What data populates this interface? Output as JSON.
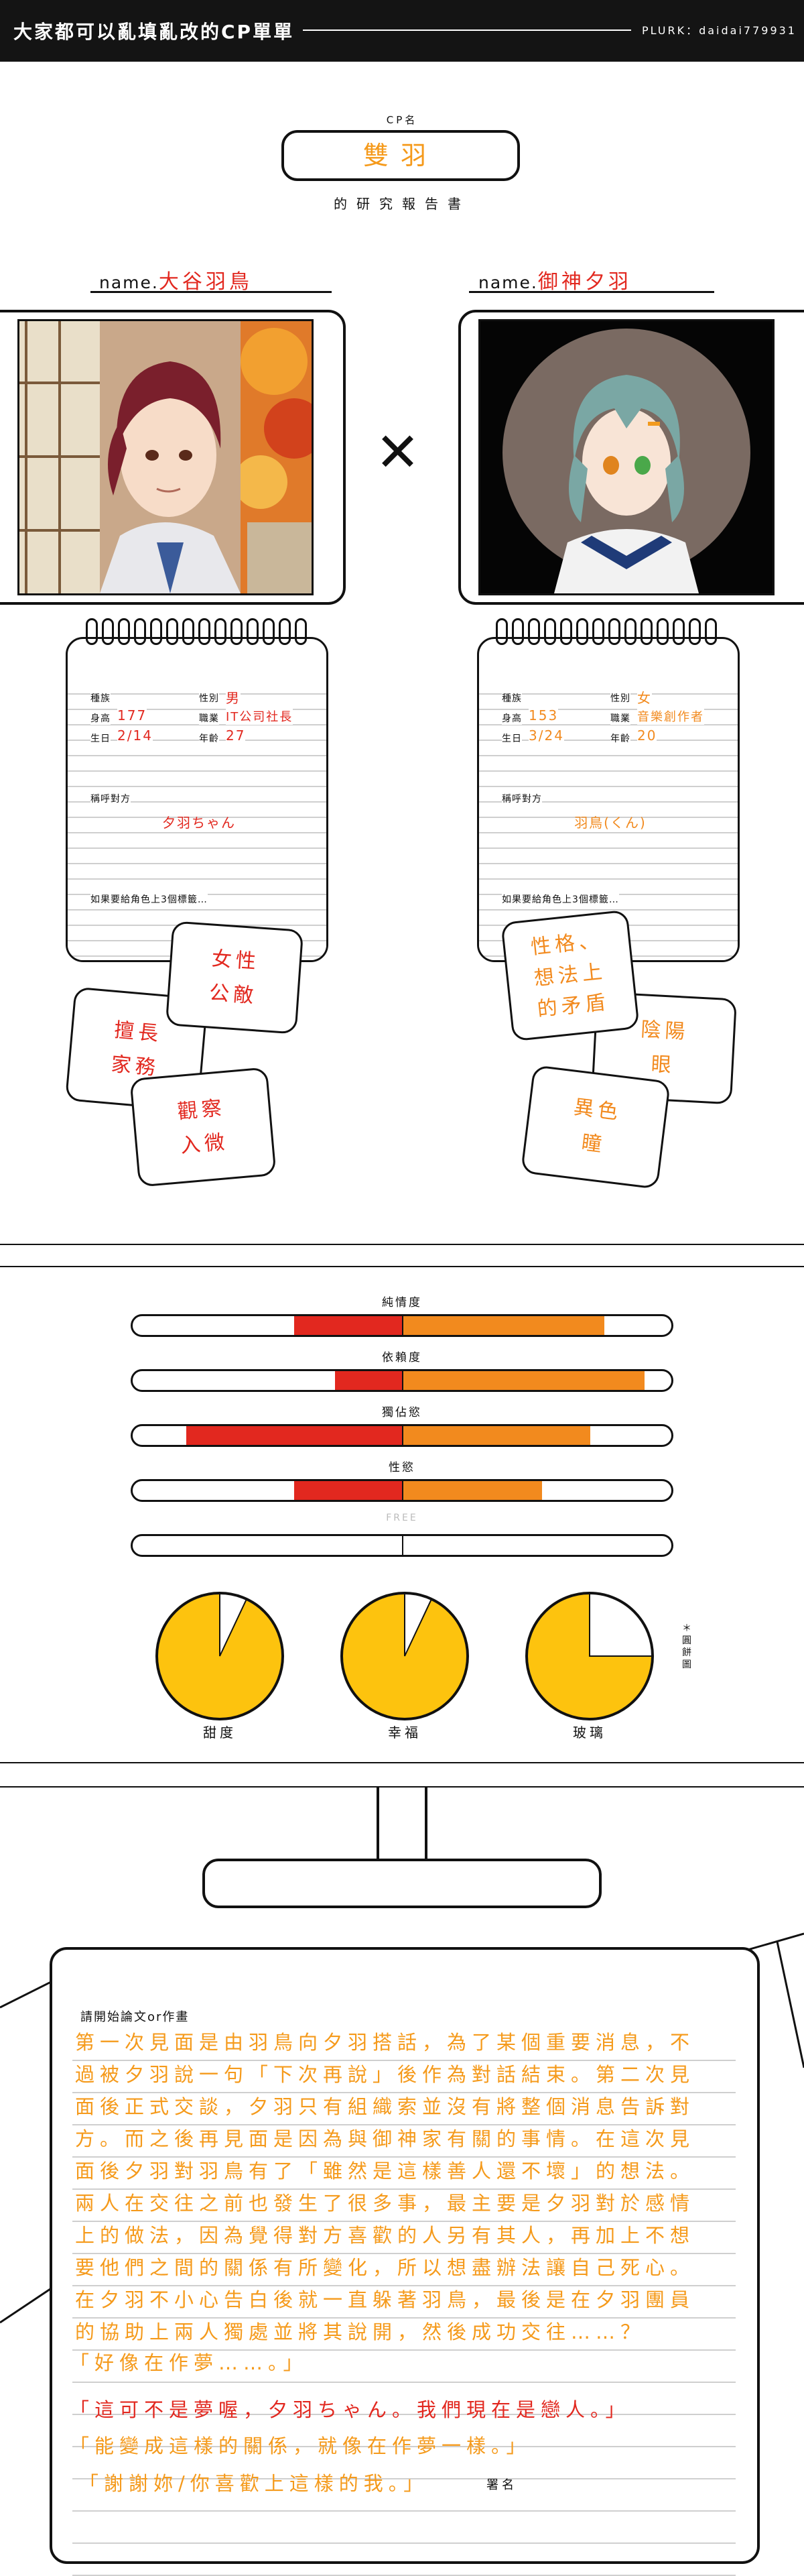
{
  "header": {
    "title": "大家都可以亂填亂改的CP單單",
    "plurk": "PLURK：daidai779931"
  },
  "cp": {
    "label": "CP名",
    "name": "雙羽",
    "subtitle": "的研究報告書"
  },
  "left": {
    "name_prefix": "name.",
    "name": "大谷羽鳥",
    "fields": {
      "race_label": "種族",
      "race": "",
      "gender_label": "性別",
      "gender": "男",
      "height_label": "身高",
      "height": "177",
      "job_label": "職業",
      "job": "IT公司社長",
      "birthday_label": "生日",
      "birthday": "2/14",
      "age_label": "年齡",
      "age": "27",
      "callname_label": "稱呼對方",
      "callname": "夕羽ちゃん",
      "tags_label": "如果要給角色上3個標籤…"
    },
    "tags": [
      "女性公敵",
      "擅長家務",
      "觀察入微"
    ]
  },
  "right": {
    "name_prefix": "name.",
    "name": "御神夕羽",
    "fields": {
      "race_label": "種族",
      "race": "",
      "gender_label": "性別",
      "gender": "女",
      "height_label": "身高",
      "height": "153",
      "job_label": "職業",
      "job": "音樂創作者",
      "birthday_label": "生日",
      "birthday": "3/24",
      "age_label": "年齡",
      "age": "20",
      "callname_label": "稱呼對方",
      "callname": "羽鳥(くん)",
      "tags_label": "如果要給角色上3個標籤…"
    },
    "tags": [
      "性格、想法上的矛盾",
      "陰陽眼",
      "異色瞳"
    ]
  },
  "times_symbol": "✕",
  "colors": {
    "red": "#e2281f",
    "orange": "#f28a1e",
    "yellow": "#fdc30e",
    "title_orange": "#f59a1b"
  },
  "bars": [
    {
      "label": "純情度",
      "left": 0.4,
      "right": 0.75
    },
    {
      "label": "依賴度",
      "left": 0.25,
      "right": 0.9
    },
    {
      "label": "獨佔慾",
      "left": 0.8,
      "right": 0.7
    },
    {
      "label": "性慾",
      "left": 0.4,
      "right": 0.52
    },
    {
      "label": "FREE",
      "left": 0,
      "right": 0
    }
  ],
  "pies": [
    {
      "label": "甜度",
      "filled": 0.93
    },
    {
      "label": "幸福",
      "filled": 0.93
    },
    {
      "label": "玻璃",
      "filled": 0.75
    }
  ],
  "pie_note": "＊圓餅圖",
  "essay": {
    "label": "請開始論文or作畫",
    "lines": [
      "第一次見面是由羽鳥向夕羽搭話，為了某個重要消息，不",
      "過被夕羽說一句「下次再說」後作為對話結束。第二次見",
      "面後正式交談，夕羽只有組織索並沒有將整個消息告訴對",
      "方。而之後再見面是因為與御神家有關的事情。在這次見",
      "面後夕羽對羽鳥有了「雖然是這樣善人還不壞」的想法。",
      "兩人在交往之前也發生了很多事，最主要是夕羽對於感情",
      "上的做法，因為覺得對方喜歡的人另有其人，再加上不想",
      "要他們之間的關係有所變化，所以想盡辦法讓自己死心。",
      "在夕羽不小心告白後就一直躲著羽鳥，最後是在夕羽團員",
      "的協助上兩人獨處並將其說開，然後成功交往……？"
    ],
    "quote1": "「好像在作夢……。」",
    "quote2": "「這可不是夢喔，夕羽ちゃん。我們現在是戀人。」",
    "quote3": "「能變成這樣的關係，就像在作夢一樣。」",
    "quote4": "「謝謝妳/你喜歡上這樣的我。」",
    "signature": "署名"
  }
}
